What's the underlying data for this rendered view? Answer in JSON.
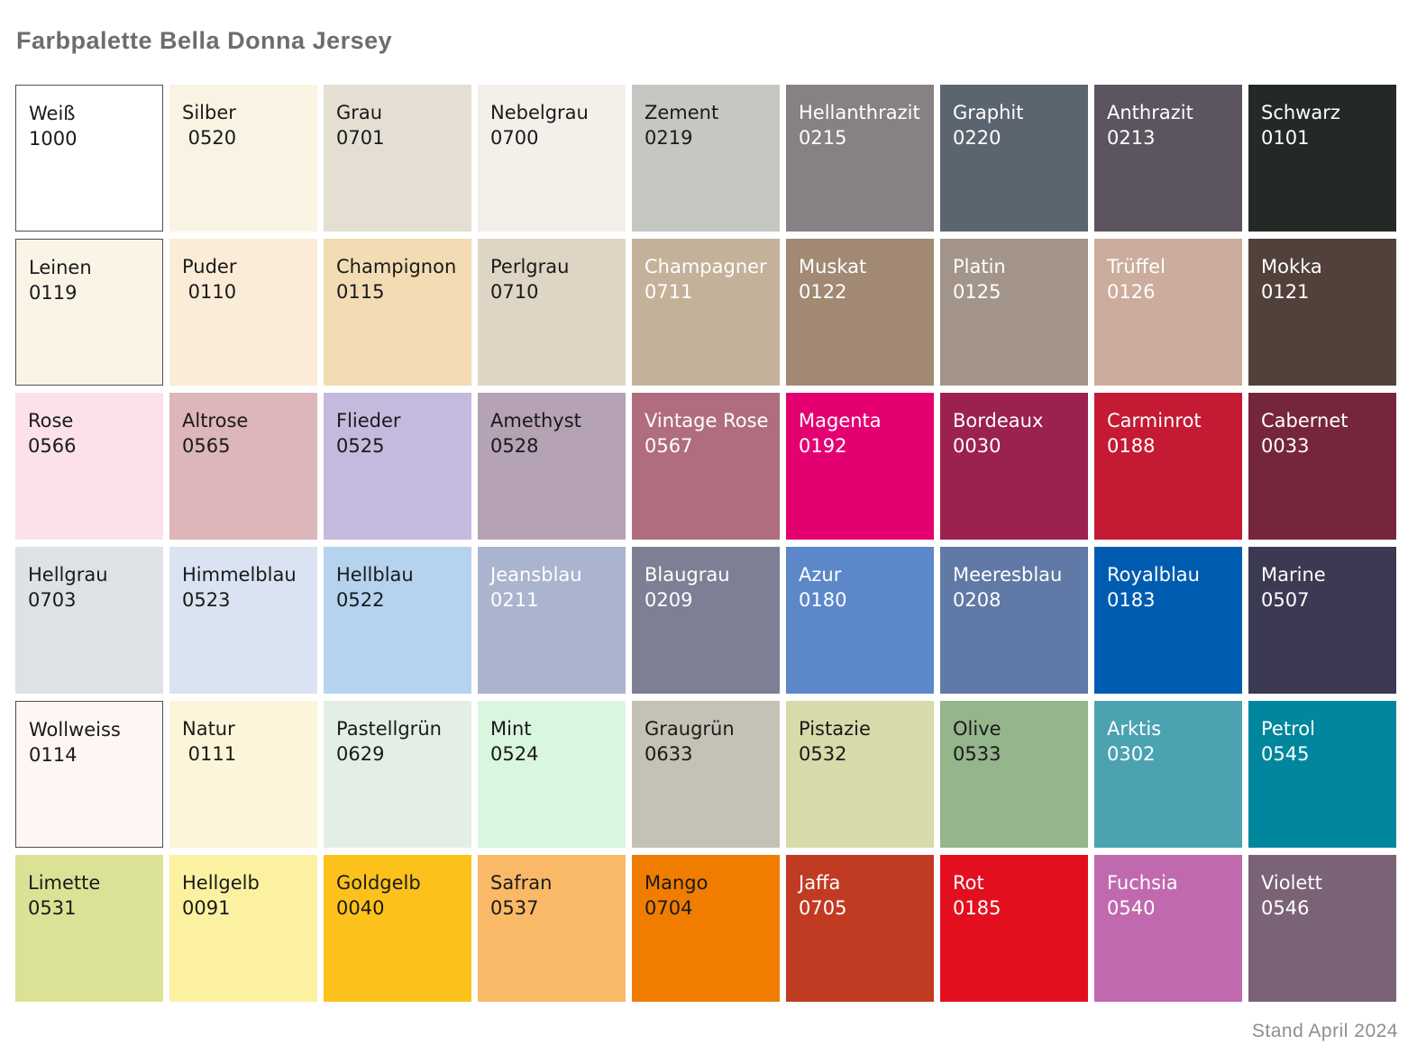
{
  "page": {
    "title": "Farbpalette Bella Donna Jersey",
    "footer": "Stand April 2024"
  },
  "palette": {
    "columns": 9,
    "rows": 6,
    "text_dark": "#1a1a1a",
    "text_light": "#ffffff",
    "swatches": [
      {
        "name": "Weiß",
        "code": "1000",
        "bg": "#ffffff",
        "text": "dark",
        "border": true
      },
      {
        "name": "Silber",
        "code": " 0520",
        "bg": "#f8f3e3",
        "text": "dark",
        "border": false
      },
      {
        "name": "Grau",
        "code": "0701",
        "bg": "#e5dfd3",
        "text": "dark",
        "border": false
      },
      {
        "name": "Nebelgrau",
        "code": "0700",
        "bg": "#f2f0e9",
        "text": "dark",
        "border": false
      },
      {
        "name": "Zement",
        "code": "0219",
        "bg": "#c6c6c2",
        "text": "dark",
        "border": false
      },
      {
        "name": "Hellanthrazit",
        "code": "0215",
        "bg": "#878084",
        "text": "light",
        "border": false
      },
      {
        "name": "Graphit",
        "code": "0220",
        "bg": "#5b6570",
        "text": "light",
        "border": false
      },
      {
        "name": "Anthrazit",
        "code": "0213",
        "bg": "#5c5560",
        "text": "light",
        "border": false
      },
      {
        "name": "Schwarz",
        "code": "0101",
        "bg": "#232a26",
        "text": "light",
        "border": false
      },
      {
        "name": "Leinen",
        "code": "0119",
        "bg": "#faf4e7",
        "text": "dark",
        "border": true
      },
      {
        "name": "Puder",
        "code": " 0110",
        "bg": "#fbecd7",
        "text": "dark",
        "border": false
      },
      {
        "name": "Champignon",
        "code": "0115",
        "bg": "#f3dcb4",
        "text": "dark",
        "border": false
      },
      {
        "name": "Perlgrau",
        "code": "0710",
        "bg": "#ded5c4",
        "text": "dark",
        "border": false
      },
      {
        "name": "Champagner",
        "code": "0711",
        "bg": "#c3b199",
        "text": "light",
        "border": false
      },
      {
        "name": "Muskat",
        "code": "0122",
        "bg": "#a18974",
        "text": "light",
        "border": false
      },
      {
        "name": "Platin",
        "code": "0125",
        "bg": "#a39589",
        "text": "light",
        "border": false
      },
      {
        "name": "Trüffel",
        "code": "0126",
        "bg": "#ccac9d",
        "text": "light",
        "border": false
      },
      {
        "name": "Mokka",
        "code": "0121",
        "bg": "#52413a",
        "text": "light",
        "border": false
      },
      {
        "name": "Rose",
        "code": "0566",
        "bg": "#fce1e9",
        "text": "dark",
        "border": false
      },
      {
        "name": "Altrose",
        "code": "0565",
        "bg": "#dcb6b8",
        "text": "dark",
        "border": false
      },
      {
        "name": "Flieder",
        "code": "0525",
        "bg": "#c4bade",
        "text": "dark",
        "border": false
      },
      {
        "name": "Amethyst",
        "code": "0528",
        "bg": "#b5a2b4",
        "text": "dark",
        "border": false
      },
      {
        "name": "Vintage Rose",
        "code": "0567",
        "bg": "#b06d7f",
        "text": "light",
        "border": false
      },
      {
        "name": "Magenta",
        "code": "0192",
        "bg": "#e50072",
        "text": "light",
        "border": false
      },
      {
        "name": "Bordeaux",
        "code": "0030",
        "bg": "#9b2150",
        "text": "light",
        "border": false
      },
      {
        "name": "Carminrot",
        "code": "0188",
        "bg": "#c51a34",
        "text": "light",
        "border": false
      },
      {
        "name": "Cabernet",
        "code": "0033",
        "bg": "#75263c",
        "text": "light",
        "border": false
      },
      {
        "name": "Hellgrau",
        "code": "0703",
        "bg": "#dee1e6",
        "text": "dark",
        "border": false
      },
      {
        "name": "Himmelblau",
        "code": "0523",
        "bg": "#d9e3f2",
        "text": "dark",
        "border": false
      },
      {
        "name": "Hellblau",
        "code": "0522",
        "bg": "#b5d3ef",
        "text": "dark",
        "border": false
      },
      {
        "name": "Jeansblau",
        "code": "0211",
        "bg": "#abb4ce",
        "text": "light",
        "border": false
      },
      {
        "name": "Blaugrau",
        "code": "0209",
        "bg": "#7d8094",
        "text": "light",
        "border": false
      },
      {
        "name": "Azur",
        "code": "0180",
        "bg": "#5c88c9",
        "text": "light",
        "border": false
      },
      {
        "name": "Meeresblau",
        "code": "0208",
        "bg": "#6079a6",
        "text": "light",
        "border": false
      },
      {
        "name": "Royalblau",
        "code": "0183",
        "bg": "#005cb1",
        "text": "light",
        "border": false
      },
      {
        "name": "Marine",
        "code": "0507",
        "bg": "#3b3a52",
        "text": "light",
        "border": false
      },
      {
        "name": "Wollweiss",
        "code": "0114",
        "bg": "#fdf6f4",
        "text": "dark",
        "border": true
      },
      {
        "name": "Natur",
        "code": " 0111",
        "bg": "#fdf5da",
        "text": "dark",
        "border": false
      },
      {
        "name": "Pastellgrün",
        "code": "0629",
        "bg": "#e3eee5",
        "text": "dark",
        "border": false
      },
      {
        "name": "Mint",
        "code": "0524",
        "bg": "#d9f6df",
        "text": "dark",
        "border": false
      },
      {
        "name": "Graugrün",
        "code": "0633",
        "bg": "#c3c2b4",
        "text": "dark",
        "border": false
      },
      {
        "name": "Pistazie",
        "code": "0532",
        "bg": "#d7daa9",
        "text": "dark",
        "border": false
      },
      {
        "name": "Olive",
        "code": "0533",
        "bg": "#95b58d",
        "text": "dark",
        "border": false
      },
      {
        "name": "Arktis",
        "code": "0302",
        "bg": "#4ba3b1",
        "text": "light",
        "border": false
      },
      {
        "name": "Petrol",
        "code": "0545",
        "bg": "#00879d",
        "text": "light",
        "border": false
      },
      {
        "name": "Limette",
        "code": "0531",
        "bg": "#dce295",
        "text": "dark",
        "border": false
      },
      {
        "name": "Hellgelb",
        "code": "0091",
        "bg": "#fbf1a1",
        "text": "dark",
        "border": false
      },
      {
        "name": "Goldgelb",
        "code": "0040",
        "bg": "#fcc21b",
        "text": "dark",
        "border": false
      },
      {
        "name": "Safran",
        "code": "0537",
        "bg": "#f9b966",
        "text": "dark",
        "border": false
      },
      {
        "name": "Mango",
        "code": "0704",
        "bg": "#f17d00",
        "text": "dark",
        "border": false
      },
      {
        "name": "Jaffa",
        "code": "0705",
        "bg": "#c13a22",
        "text": "light",
        "border": false
      },
      {
        "name": "Rot",
        "code": "0185",
        "bg": "#e30f1e",
        "text": "light",
        "border": false
      },
      {
        "name": "Fuchsia",
        "code": "0540",
        "bg": "#c169ae",
        "text": "light",
        "border": false
      },
      {
        "name": "Violett",
        "code": "0546",
        "bg": "#7a6377",
        "text": "light",
        "border": false
      }
    ]
  }
}
